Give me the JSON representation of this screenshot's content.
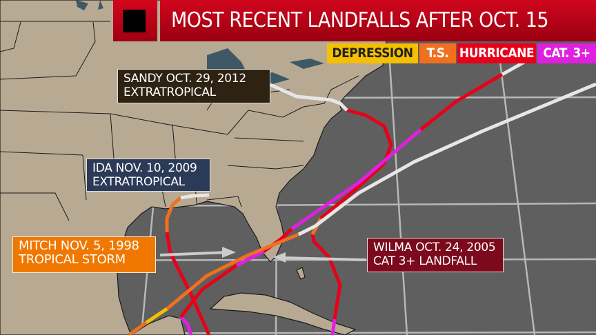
{
  "title": "MOST RECENT LANDFALLS AFTER OCT. 15",
  "title_icon": "black-square-icon",
  "legend": [
    {
      "label": "DEPRESSION",
      "color": "#f5c000",
      "text_color": "#222222"
    },
    {
      "label": "T.S.",
      "color": "#f07020",
      "text_color": "#ffffff"
    },
    {
      "label": "HURRICANE",
      "color": "#e8001a",
      "text_color": "#ffffff"
    },
    {
      "label": "CAT. 3+",
      "color": "#e020e0",
      "text_color": "#ffffff"
    }
  ],
  "extratropical_color": "#e6e6e6",
  "land_color": "#b8a993",
  "ocean_color": "#5f5f5f",
  "storms": [
    {
      "name": "Sandy",
      "line1": "SANDY OCT.  29, 2012",
      "line2": "EXTRATROPICAL",
      "box_color": "#2e2312"
    },
    {
      "name": "Ida",
      "line1": "IDA NOV. 10, 2009",
      "line2": "EXTRATROPICAL",
      "box_color": "#2b3a57"
    },
    {
      "name": "Mitch",
      "line1": "MITCH NOV. 5, 1998",
      "line2": "TROPICAL STORM",
      "box_color": "#f07800"
    },
    {
      "name": "Wilma",
      "line1": "WILMA OCT. 24, 2005",
      "line2": "CAT 3+ LANDFALL",
      "box_color": "#7a0a1c"
    }
  ]
}
